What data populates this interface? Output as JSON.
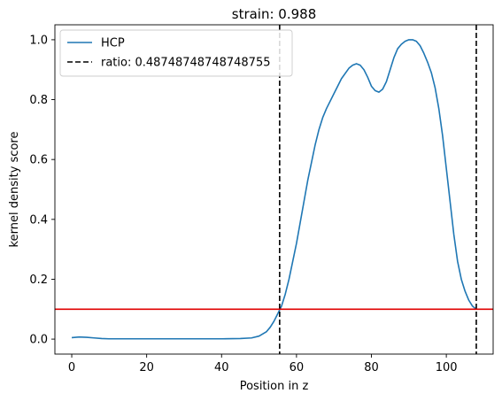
{
  "chart_data": {
    "type": "line",
    "title": "strain: 0.988",
    "xlabel": "Position in z",
    "ylabel": "kernel density score",
    "xlim": [
      -4.5,
      112.5
    ],
    "ylim": [
      -0.05,
      1.05
    ],
    "xticks": [
      0,
      20,
      40,
      60,
      80,
      100
    ],
    "yticks": [
      0.0,
      0.2,
      0.4,
      0.6,
      0.8,
      1.0
    ],
    "xtick_labels": [
      "0",
      "20",
      "40",
      "60",
      "80",
      "100"
    ],
    "ytick_labels": [
      "0.0",
      "0.2",
      "0.4",
      "0.6",
      "0.8",
      "1.0"
    ],
    "grid": false,
    "legend_position": "top-left",
    "series": [
      {
        "name": "HCP",
        "color": "#1f77b4",
        "x": [
          0,
          2,
          4,
          6,
          8,
          10,
          15,
          20,
          25,
          30,
          35,
          40,
          45,
          48,
          50,
          52,
          53,
          54,
          55,
          55.6,
          56,
          57,
          58,
          59,
          60,
          61,
          62,
          63,
          64,
          65,
          66,
          67,
          68,
          70,
          72,
          74,
          75,
          76,
          77,
          78,
          79,
          80,
          81,
          82,
          83,
          84,
          85,
          86,
          87,
          88,
          89,
          90,
          91,
          92,
          93,
          94,
          95,
          96,
          97,
          98,
          99,
          100,
          101,
          102,
          103,
          104,
          105,
          106,
          107,
          108
        ],
        "y": [
          0.005,
          0.007,
          0.006,
          0.004,
          0.002,
          0.001,
          0.001,
          0.001,
          0.001,
          0.001,
          0.001,
          0.001,
          0.002,
          0.004,
          0.01,
          0.025,
          0.04,
          0.06,
          0.085,
          0.1,
          0.11,
          0.15,
          0.2,
          0.26,
          0.32,
          0.39,
          0.46,
          0.53,
          0.59,
          0.65,
          0.7,
          0.74,
          0.77,
          0.82,
          0.87,
          0.905,
          0.915,
          0.92,
          0.915,
          0.9,
          0.875,
          0.845,
          0.83,
          0.825,
          0.835,
          0.86,
          0.9,
          0.94,
          0.97,
          0.985,
          0.995,
          1.0,
          1.0,
          0.995,
          0.98,
          0.955,
          0.925,
          0.89,
          0.84,
          0.77,
          0.68,
          0.57,
          0.46,
          0.35,
          0.26,
          0.2,
          0.16,
          0.13,
          0.11,
          0.1
        ]
      },
      {
        "name": "ratio: 0.48748748748748755",
        "color": "#000000",
        "style": "dashed",
        "vlines": [
          55.5,
          108
        ]
      },
      {
        "name": "",
        "color": "#e00000",
        "hline": 0.1
      }
    ]
  }
}
